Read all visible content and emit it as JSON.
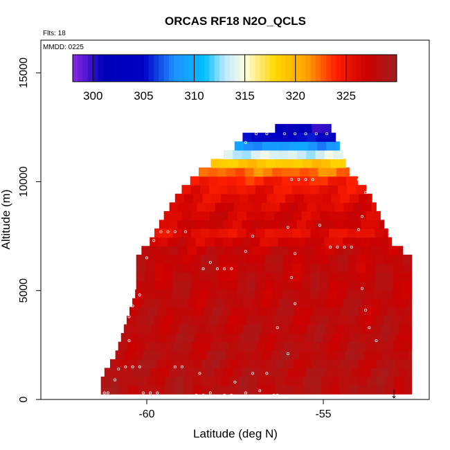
{
  "chart_data": {
    "type": "heatmap",
    "title": "ORCAS RF18 N2O_QCLS",
    "notes": [
      "Flts: 18",
      "MMDD: 0225"
    ],
    "xlabel": "Latitude (deg N)",
    "ylabel": "Altitude (m)",
    "xlim": [
      -63.0,
      -52.0
    ],
    "ylim": [
      0,
      16500
    ],
    "x_ticks": [
      -60,
      -55
    ],
    "x_tick_labels": [
      "-60",
      "-55"
    ],
    "y_ticks": [
      0,
      5000,
      10000,
      15000
    ],
    "y_tick_labels": [
      "0",
      "5000",
      "10000",
      "15000"
    ],
    "colorbar": {
      "min": 298,
      "max": 330,
      "ticks": [
        300,
        305,
        310,
        315,
        320,
        325
      ],
      "tick_labels": [
        "300",
        "305",
        "310",
        "315",
        "320",
        "325"
      ],
      "stops": [
        {
          "v": 298,
          "c": "#8a2be2"
        },
        {
          "v": 301,
          "c": "#0000b8"
        },
        {
          "v": 305,
          "c": "#0000c8"
        },
        {
          "v": 308,
          "c": "#1e90ff"
        },
        {
          "v": 311,
          "c": "#00bfff"
        },
        {
          "v": 313,
          "c": "#bfe8ff"
        },
        {
          "v": 315,
          "c": "#fdfde0"
        },
        {
          "v": 318,
          "c": "#ffd700"
        },
        {
          "v": 321,
          "c": "#ffa500"
        },
        {
          "v": 324,
          "c": "#ff2000"
        },
        {
          "v": 327,
          "c": "#cc0000"
        },
        {
          "v": 330,
          "c": "#a02020"
        }
      ]
    },
    "field": {
      "alt_step": 400,
      "lat_step": 0.26,
      "envelope": [
        {
          "alt": 250,
          "lat_min": -61.3,
          "lat_max": -52.5
        },
        {
          "alt": 1000,
          "lat_min": -61.3,
          "lat_max": -52.5
        },
        {
          "alt": 2000,
          "lat_min": -60.9,
          "lat_max": -52.5
        },
        {
          "alt": 5000,
          "lat_min": -60.3,
          "lat_max": -52.5
        },
        {
          "alt": 6700,
          "lat_min": -60.3,
          "lat_max": -52.5
        },
        {
          "alt": 7000,
          "lat_min": -60.0,
          "lat_max": -53.0
        },
        {
          "alt": 8500,
          "lat_min": -59.5,
          "lat_max": -53.4
        },
        {
          "alt": 9500,
          "lat_min": -59.1,
          "lat_max": -53.7
        },
        {
          "alt": 10500,
          "lat_min": -58.5,
          "lat_max": -54.3
        },
        {
          "alt": 11500,
          "lat_min": -57.6,
          "lat_max": -54.5
        },
        {
          "alt": 12200,
          "lat_min": -57.2,
          "lat_max": -54.7
        },
        {
          "alt": 12500,
          "lat_min": -56.2,
          "lat_max": -54.8
        }
      ],
      "profile": [
        {
          "alt": 0,
          "value": 328.5
        },
        {
          "alt": 7000,
          "value": 327.5
        },
        {
          "alt": 7600,
          "value": 325.5
        },
        {
          "alt": 8000,
          "value": 327.0
        },
        {
          "alt": 9200,
          "value": 326.0
        },
        {
          "alt": 10000,
          "value": 324.5
        },
        {
          "alt": 10500,
          "value": 322.0
        },
        {
          "alt": 10900,
          "value": 318.5
        },
        {
          "alt": 11300,
          "value": 313.0
        },
        {
          "alt": 11700,
          "value": 308.0
        },
        {
          "alt": 12200,
          "value": 303.0
        },
        {
          "alt": 12600,
          "value": 299.5
        }
      ]
    },
    "samples": [
      {
        "lat": -61.2,
        "alt": 300
      },
      {
        "lat": -61.1,
        "alt": 300
      },
      {
        "lat": -60.9,
        "alt": 900
      },
      {
        "lat": -60.8,
        "alt": 1400
      },
      {
        "lat": -60.6,
        "alt": 1500
      },
      {
        "lat": -60.4,
        "alt": 1500
      },
      {
        "lat": -60.2,
        "alt": 1500
      },
      {
        "lat": -60.1,
        "alt": 300
      },
      {
        "lat": -59.9,
        "alt": 300
      },
      {
        "lat": -59.7,
        "alt": 300
      },
      {
        "lat": -59.2,
        "alt": 1500
      },
      {
        "lat": -59.0,
        "alt": 1500
      },
      {
        "lat": -58.6,
        "alt": 200
      },
      {
        "lat": -58.4,
        "alt": 200
      },
      {
        "lat": -58.2,
        "alt": 300
      },
      {
        "lat": -57.8,
        "alt": 200
      },
      {
        "lat": -57.6,
        "alt": 200
      },
      {
        "lat": -57.2,
        "alt": 300
      },
      {
        "lat": -56.8,
        "alt": 400
      },
      {
        "lat": -56.4,
        "alt": 200
      },
      {
        "lat": -56.3,
        "alt": 200
      },
      {
        "lat": -58.5,
        "alt": 1200
      },
      {
        "lat": -57.5,
        "alt": 800
      },
      {
        "lat": -57.0,
        "alt": 1200
      },
      {
        "lat": -56.6,
        "alt": 1200
      },
      {
        "lat": -56.0,
        "alt": 2100
      },
      {
        "lat": -60.5,
        "alt": 2700
      },
      {
        "lat": -60.7,
        "alt": 3200
      },
      {
        "lat": -60.5,
        "alt": 3800
      },
      {
        "lat": -60.4,
        "alt": 4300
      },
      {
        "lat": -60.2,
        "alt": 4800
      },
      {
        "lat": -60.0,
        "alt": 6500
      },
      {
        "lat": -59.8,
        "alt": 7300
      },
      {
        "lat": -59.6,
        "alt": 7700
      },
      {
        "lat": -59.4,
        "alt": 7700
      },
      {
        "lat": -59.2,
        "alt": 7700
      },
      {
        "lat": -58.9,
        "alt": 7700
      },
      {
        "lat": -58.2,
        "alt": 6300
      },
      {
        "lat": -58.0,
        "alt": 6000
      },
      {
        "lat": -57.8,
        "alt": 6000
      },
      {
        "lat": -57.6,
        "alt": 6000
      },
      {
        "lat": -57.0,
        "alt": 7500
      },
      {
        "lat": -55.9,
        "alt": 5600
      },
      {
        "lat": -55.8,
        "alt": 6700
      },
      {
        "lat": -56.0,
        "alt": 7900
      },
      {
        "lat": -55.8,
        "alt": 4400
      },
      {
        "lat": -56.3,
        "alt": 3300
      },
      {
        "lat": -54.8,
        "alt": 7000
      },
      {
        "lat": -54.6,
        "alt": 7000
      },
      {
        "lat": -54.4,
        "alt": 7000
      },
      {
        "lat": -54.2,
        "alt": 7000
      },
      {
        "lat": -55.1,
        "alt": 8000
      },
      {
        "lat": -54.0,
        "alt": 7800
      },
      {
        "lat": -53.9,
        "alt": 8400
      },
      {
        "lat": -53.8,
        "alt": 9500
      },
      {
        "lat": -54.0,
        "alt": 10100
      },
      {
        "lat": -55.9,
        "alt": 10100
      },
      {
        "lat": -55.7,
        "alt": 10100
      },
      {
        "lat": -55.5,
        "alt": 10100
      },
      {
        "lat": -55.3,
        "alt": 10100
      },
      {
        "lat": -56.1,
        "alt": 12200
      },
      {
        "lat": -55.8,
        "alt": 12200
      },
      {
        "lat": -55.5,
        "alt": 12200
      },
      {
        "lat": -55.2,
        "alt": 12200
      },
      {
        "lat": -54.9,
        "alt": 12200
      },
      {
        "lat": -56.9,
        "alt": 12200
      },
      {
        "lat": -56.6,
        "alt": 12200
      },
      {
        "lat": -57.2,
        "alt": 11800
      },
      {
        "lat": -54.2,
        "alt": 11000
      },
      {
        "lat": -53.9,
        "alt": 5100
      },
      {
        "lat": -53.8,
        "alt": 4100
      },
      {
        "lat": -53.7,
        "alt": 3300
      },
      {
        "lat": -53.5,
        "alt": 2700
      },
      {
        "lat": -57.2,
        "alt": 6800
      },
      {
        "lat": -58.4,
        "alt": 6000
      }
    ],
    "marker": {
      "lat": -53.0,
      "alt": 0,
      "symbol": "↓"
    }
  }
}
